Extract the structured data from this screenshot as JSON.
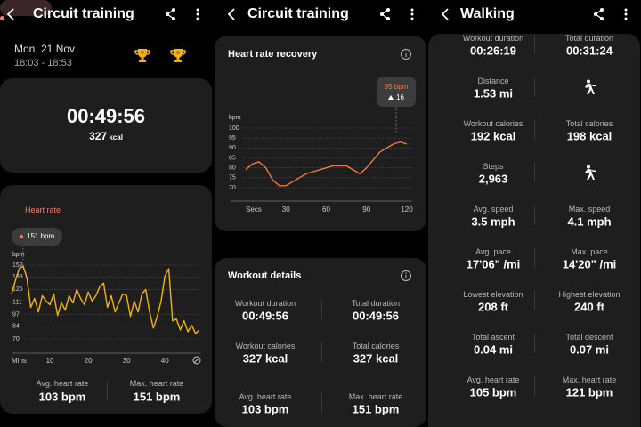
{
  "screens": [
    {
      "title": "Circuit training",
      "date": "Mon, 21 Nov",
      "time": "18:03 - 18:53",
      "duration": "00:49:56",
      "calories": {
        "value": "327",
        "unit": "kcal"
      },
      "stats": [
        {
          "label": "Avg. heart rate",
          "value": "103 bpm"
        },
        {
          "label": "Max. heart rate",
          "value": "151 bpm"
        }
      ]
    },
    {
      "title": "Circuit training",
      "details": {
        "title": "Workout details",
        "items": [
          {
            "label": "Workout duration",
            "value": "00:49:56"
          },
          {
            "label": "Total duration",
            "value": "00:49:56"
          },
          {
            "label": "Workout calories",
            "value": "327 kcal"
          },
          {
            "label": "Total calories",
            "value": "327 kcal"
          },
          {
            "label": "Avg. heart rate",
            "value": "103 bpm"
          },
          {
            "label": "Max. heart rate",
            "value": "151 bpm"
          }
        ]
      }
    },
    {
      "title": "Walking",
      "rows": [
        [
          {
            "label": "Workout duration",
            "value": "00:26:19"
          },
          {
            "label": "Total duration",
            "value": "00:31:24"
          }
        ],
        [
          {
            "label": "Distance",
            "value": "1.53 mi"
          }
        ],
        [
          {
            "label": "Workout calories",
            "value": "192 kcal"
          },
          {
            "label": "Total calories",
            "value": "198 kcal"
          }
        ],
        [
          {
            "label": "Steps",
            "value": "2,963"
          }
        ],
        [
          {
            "label": "Avg. speed",
            "value": "3.5 mph"
          },
          {
            "label": "Max. speed",
            "value": "4.1 mph"
          }
        ],
        [
          {
            "label": "Avg. pace",
            "value": "17'06\" /mi"
          },
          {
            "label": "Max. pace",
            "value": "14'20\" /mi"
          }
        ],
        [
          {
            "label": "Lowest elevation",
            "value": "208 ft"
          },
          {
            "label": "Highest elevation",
            "value": "240 ft"
          }
        ],
        [
          {
            "label": "Total ascent",
            "value": "0.04 mi"
          },
          {
            "label": "Total descent",
            "value": "0.07 mi"
          }
        ],
        [
          {
            "label": "Avg. heart rate",
            "value": "105 bpm"
          },
          {
            "label": "Max. heart rate",
            "value": "121 bpm"
          }
        ]
      ]
    }
  ],
  "chart_data": [
    {
      "type": "line",
      "title": "Heart rate",
      "tooltip": "151 bpm",
      "y_label": "bpm",
      "color": "#f4b400",
      "grid": true,
      "x": [
        0,
        1,
        2,
        3,
        4,
        5,
        6,
        7,
        8,
        9,
        10,
        11,
        12,
        13,
        14,
        15,
        16,
        17,
        18,
        19,
        20,
        21,
        22,
        23,
        24,
        25,
        26,
        27,
        28,
        29,
        30,
        31,
        32,
        33,
        34,
        35,
        36,
        37,
        38,
        39,
        40,
        41,
        42,
        43,
        44,
        45,
        46,
        47,
        48,
        49
      ],
      "values": [
        120,
        135,
        148,
        151,
        138,
        105,
        115,
        100,
        118,
        112,
        108,
        120,
        96,
        110,
        102,
        118,
        110,
        125,
        115,
        108,
        122,
        112,
        118,
        128,
        132,
        105,
        118,
        100,
        110,
        120,
        118,
        95,
        112,
        100,
        120,
        125,
        100,
        82,
        95,
        112,
        140,
        148,
        90,
        92,
        80,
        90,
        78,
        85,
        76,
        80
      ],
      "xlim": [
        0,
        49
      ],
      "xticks": [
        {
          "value": 0,
          "label": "Mins"
        },
        10,
        20,
        30,
        40
      ],
      "ylim": [
        70,
        152
      ],
      "yticks": [
        152,
        139,
        125,
        111,
        97,
        84,
        70
      ]
    },
    {
      "type": "line",
      "title": "Heart rate recovery",
      "tooltip": {
        "bpm_text": "95 bpm",
        "change": "16"
      },
      "y_label": "bpm",
      "color": "#f07a3c",
      "grid": true,
      "x": [
        0,
        5,
        10,
        15,
        20,
        25,
        30,
        35,
        40,
        45,
        50,
        55,
        60,
        65,
        70,
        75,
        80,
        85,
        90,
        95,
        100,
        105,
        110,
        115,
        120
      ],
      "values": [
        79,
        82,
        83,
        80,
        74,
        71,
        71,
        73,
        75,
        77,
        78,
        79,
        80,
        81,
        81,
        81,
        79,
        77,
        80,
        84,
        88,
        90,
        92,
        93,
        92
      ],
      "xlim": [
        0,
        120
      ],
      "xticks": [
        {
          "value": 0,
          "label": "Secs"
        },
        30,
        60,
        90,
        120
      ],
      "ylim": [
        70,
        100
      ],
      "yticks": [
        100,
        95,
        90,
        85,
        80,
        75,
        70
      ]
    }
  ]
}
